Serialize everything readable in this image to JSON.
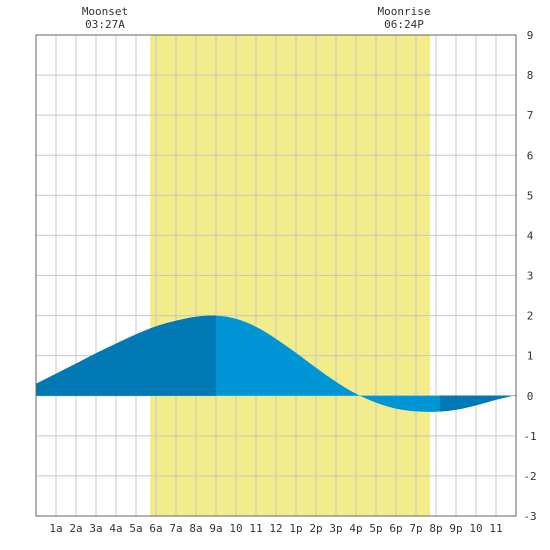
{
  "chart_data": {
    "type": "area",
    "title": "",
    "xlabel": "",
    "ylabel": "",
    "x_range_hours": [
      0,
      24
    ],
    "ylim": [
      -3,
      9
    ],
    "y_ticks": [
      -3,
      -2,
      -1,
      0,
      1,
      2,
      3,
      4,
      5,
      6,
      7,
      8,
      9
    ],
    "x_tick_labels": [
      "1a",
      "2a",
      "3a",
      "4a",
      "5a",
      "6a",
      "7a",
      "8a",
      "9a",
      "10",
      "11",
      "12",
      "1p",
      "2p",
      "3p",
      "4p",
      "5p",
      "6p",
      "7p",
      "8p",
      "9p",
      "10",
      "11"
    ],
    "grid": true,
    "daylight": {
      "start_hour": 5.7,
      "end_hour": 19.7
    },
    "moon_events": [
      {
        "label": "Moonset",
        "time": "03:27A",
        "hour": 3.45
      },
      {
        "label": "Moonrise",
        "time": "06:24P",
        "hour": 18.4
      }
    ],
    "tide_extremes": [
      {
        "type": "high",
        "hour": 9.0,
        "height": 2.0
      },
      {
        "type": "low",
        "hour": 20.2,
        "height": -0.4
      }
    ],
    "tide_series": [
      {
        "hour": 0,
        "height": 0.3
      },
      {
        "hour": 1,
        "height": 0.55
      },
      {
        "hour": 2,
        "height": 0.8
      },
      {
        "hour": 3,
        "height": 1.06
      },
      {
        "hour": 4,
        "height": 1.3
      },
      {
        "hour": 5,
        "height": 1.53
      },
      {
        "hour": 6,
        "height": 1.73
      },
      {
        "hour": 7,
        "height": 1.87
      },
      {
        "hour": 8,
        "height": 1.97
      },
      {
        "hour": 9,
        "height": 2.0
      },
      {
        "hour": 10,
        "height": 1.92
      },
      {
        "hour": 11,
        "height": 1.72
      },
      {
        "hour": 12,
        "height": 1.42
      },
      {
        "hour": 13,
        "height": 1.07
      },
      {
        "hour": 14,
        "height": 0.7
      },
      {
        "hour": 15,
        "height": 0.35
      },
      {
        "hour": 16,
        "height": 0.05
      },
      {
        "hour": 17,
        "height": -0.17
      },
      {
        "hour": 18,
        "height": -0.32
      },
      {
        "hour": 19,
        "height": -0.39
      },
      {
        "hour": 20,
        "height": -0.4
      },
      {
        "hour": 21,
        "height": -0.35
      },
      {
        "hour": 22,
        "height": -0.24
      },
      {
        "hour": 23,
        "height": -0.1
      },
      {
        "hour": 24,
        "height": 0.02
      }
    ],
    "colors": {
      "daylight": "#f2ec8a",
      "tide_rising_or_falling_light": "#0096d6",
      "tide_dark": "#0079b5",
      "grid": "#c8c8c8",
      "border": "#666666"
    }
  }
}
